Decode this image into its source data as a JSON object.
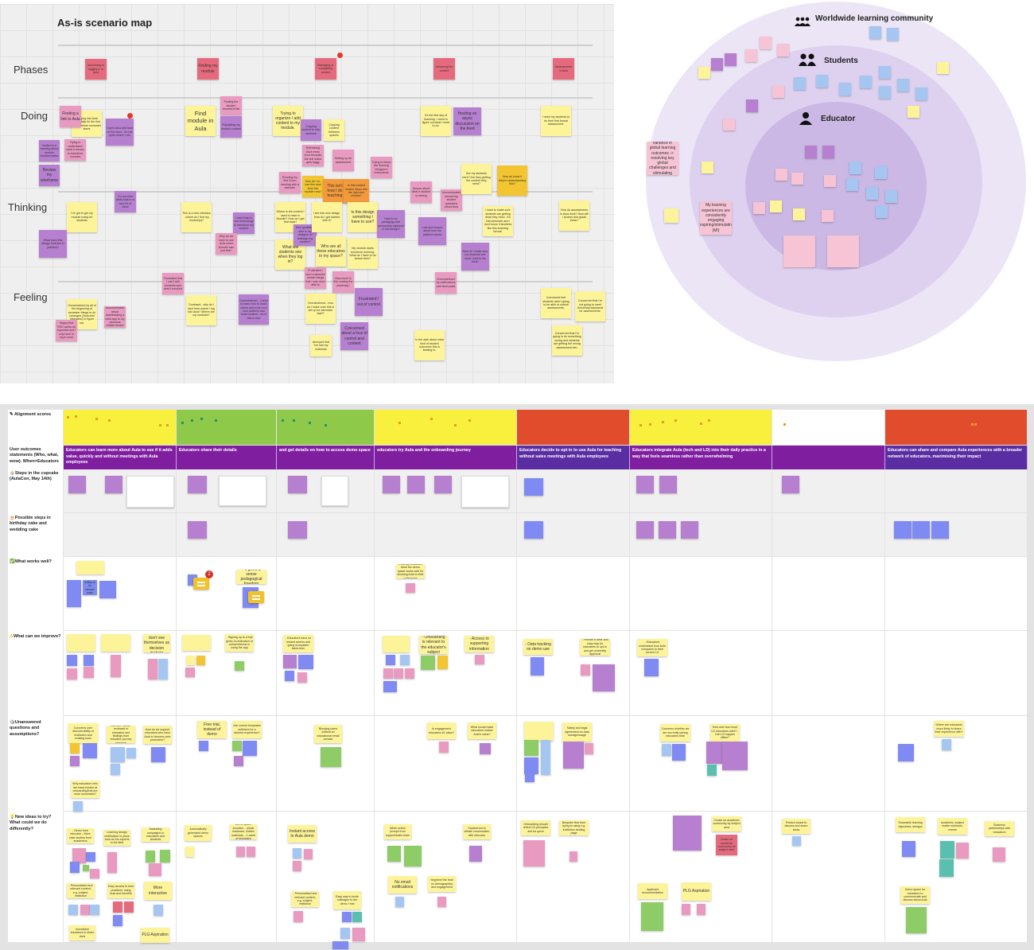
{
  "map": {
    "title": "As-is scenario map",
    "lanes": [
      "Phases",
      "Doing",
      "Thinking",
      "Feeling"
    ],
    "phases": [
      "Accessing or logging in to Aula",
      "Finding my module",
      "Managing or completing content",
      "Delivering the content",
      "Assessments in Aula"
    ],
    "doing": [
      "Finding a link to Aula",
      "Logging into Aula potentially for the first time - before semester starts",
      "I open Aula and land on the feed - I'm not quite where I am",
      "Invited to a meeting about module transformation",
      "Trying to understand what it means to transform modules",
      "Review my wireframe",
      "Find module in Aula",
      "Finding the student enrolment list",
      "Populating my module content",
      "Trying to organize / add content to my module.",
      "Copying content to sub-sections",
      "Copying content between spaces",
      "Refreshing Aula every hour because the text editor gets laggy",
      "Setting up an assessment",
      "Trying to follow the learning designer's instructions",
      "Running my first Zoom meeting with a webcam",
      "How do I re-use this next time this module runs?",
      "This isn't how I do teaching",
      "Is this content broken down into the right size chunks?",
      "It's the first day of teaching. I need to figure out what I need to do.",
      "Hosting an async discussion on the feed",
      "I need my students to do their first formal assessment.",
      "Unsure about what a student is seeing",
      "Uncomfortable answering student questions about Aula",
      "Are my students here? Are they getting the content they need?",
      "How do know if they're understanding this?"
    ],
    "thinking": [
      "I'm not clear what Aula is or why it's of value",
      "I've got to get my module ready for students",
      "What does this design look like in practice?",
      "This is a new interface - where do I find my module(s)?",
      "I need help to use technology to transform my content",
      "Why do we have to use Aula when Moodle was just fine?",
      "Where is the content I used to have in Moodle? How do I get that back?",
      "How qualified / able is my designer to redesign my content?",
      "What will students see when they log in?",
      "I see this new design. How do I get started with it?",
      "Who are all these educators in my space?",
      "Is this design something I have to use?",
      "How is my pedagogy and personality captured in this design?",
      "My module starts tomorrow morning. What do I have to do before then?",
      "Lost and unsure about how the platform works",
      "How do I make sure my students see what I add to the feed?",
      "I want to make sure students are getting what they need - it's mid semester and I don't know if students like this teaching format.",
      "How do assessments in Aula work? How will I access and grade these?"
    ],
    "feeling": [
      "Frustrated that I can't add students who aren't enrolled",
      "Frustrated I can't customise certain things that I was once able to",
      "How much is this costing the university?",
      "Overwhelmed by notifications and feed posts",
      "Overwhelmed by all of the beginning of semester things to do (changes (Aula and otherwise) to figure out.",
      "Happy that SSO works as expected and I only have to log in once",
      "Uncomfortable about downloading a work app to my personal mobile device",
      "Confused - why do I land here where I log into Aula? Where are my modules?",
      "Overwhelmed - I need to learn how to teach online and work on a new platform and build content - all of this is new",
      "Overwhelmed - how do I make sure this is set up for semester start?",
      "Frustrated / out of control",
      "Concerned about a loss of control and content",
      "Annoyed that I've lost my materials",
      "In the dark about what kind of student outcomes this is leading to.",
      "Concerned that students aren't going to be able to submit assessments.",
      "Concerned that I'm not going to meet University standards for assessments.",
      "Concerned that I'm going to do something wrong and students are getting the wrong assessment info."
    ]
  },
  "circles": {
    "labels": [
      "Worldwide learning community",
      "Students",
      "Educator"
    ],
    "notes": [
      "Reducing variance in global learning outcomes -> resolving key global challenges and stimulating growth (MI)",
      "My learning experiences are consistently engaging /inspiring/stimulating (MI)"
    ]
  },
  "board": {
    "row_labels": [
      "Alignment scores",
      "User outcomes statements (Who, what, wow). When=Educators",
      "Steps in the cupcake (AulaCon, May 14th)",
      "Possible steps in birthday cake and wedding cake",
      "What works well?",
      "What can we improve?",
      "Unanswered questions and assumptions?",
      "New ideas to try? What could we do differently?"
    ],
    "row_icons": [
      "pencil-icon",
      "",
      "cupcake-icon",
      "cake-icon",
      "check-icon",
      "warning-icon",
      "dice-icon",
      "lightbulb-icon"
    ],
    "score_colors": [
      "#f9ef3d",
      "#8ec94a",
      "#8ec94a",
      "#f9ef3d",
      "#e04c2c",
      "#f9ef3d",
      "#ffffff",
      "#e04c2c"
    ],
    "outcomes": [
      "Educators can learn more about Aula to see if it adds value, quickly and without meetings with Aula employees",
      "Educators share their details",
      "and get details on how to access demo space",
      "educators try Aula and the onboarding journey",
      "Educators decide to opt in to use Aula for teaching without sales meetings with Aula employees",
      "Educators integrate Aula (tech and LD) into their daily practice in a way that feels seamless rather than overwhelming",
      "",
      "Educators can share and compare Aula experiences with a broader network of educators, maximising their impact"
    ],
    "comment_count": "2",
    "works": [
      "- It gives a sense pedagogical freedom",
      "Existing educators think the demo space works well for showing Aula to their colleagues",
      "Ability to try sample page"
    ],
    "improve": [
      "- Educators don't see themselves as decision makers",
      "- Signing up to a trial gives no indication of actual interest in using the app",
      "- Educators have no instant access and going ecosystem takes time",
      "- Onboarding is relevant to the educator's subject",
      "- Access to supporting information",
      "- Data tracking on demo use",
      "- Provide a clear and easy way for educators to opt-in and get university approval",
      "- Educators understand how Aula compares to their current LX"
    ],
    "unanswered": [
      "Concerns over discoverability of institution and existing tools",
      "Method / above reviewed in education and findings from educator journey research",
      "How do we support educators who have Aula to become peer promoters?",
      "Why educators who are hand-holded at onboarding/trial are more successful?",
      "Free trial, instead of demo",
      "Are current templates sufficient for a tailored experience?",
      "Blocking users without an educational email domain",
      "Is engagement educators #1 value?",
      "What would make educators realize Aula's value?",
      "Safety and legal agreement on data storage/usage",
      "Concerns whether we are currently saving educators time",
      "How and how much LD educators want? - Can LD happen offline?",
      "Where are educators more likely to share their experience with?"
    ],
    "ideas": [
      "- Demo from educator - More case studies from academics",
      "Learning design certification to place Aula as the experts in the field",
      "Marketing campaigns to educators and students",
      "- Personalised and relevant content, e.g. subject, institution",
      "Easy access to best practices: using Aula and benefits",
      "More interactive",
      "Incentivise educators to share Aula",
      "PLG Aspiration",
      "Automatically generated demo spaces",
      "Demo space includes: - whole instances, hidden materials, - 1 week of templates",
      "Instant access to Aula demo",
      "- Personalised and relevant content, e.g. subject, institution",
      "Easy way to invite colleague to the demo / trial",
      "When online prompt from support/sales team",
      "Student bot to initiate conversation with educator",
      "No email notifications",
      "Segment the lead on demographics and engagement",
      "Onboarding should reflect LD principles and be quick",
      "Bespoke flow from trying to using e.g. institution landing page",
      "Create an academic community by subject area",
      "Create an academic community by subject area",
      "Applicant recommendation",
      "PLG Aspiration",
      "Product board to discuss and share ideas",
      "Shareable learning objectives, designs",
      "Academic, subject matter webinars, events",
      "Business partnerships with educators",
      "Demo space for educators to communicate and discuss about Aula"
    ]
  }
}
